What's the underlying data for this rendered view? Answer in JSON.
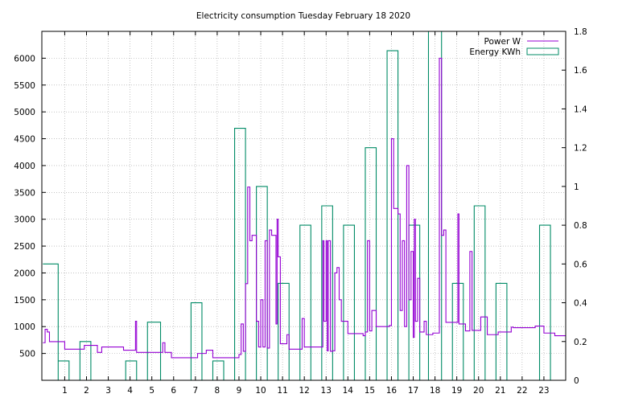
{
  "chart_data": {
    "type": "line",
    "title": "Electricity consumption Tuesday February 18 2020",
    "grid": true,
    "legend_position": "top-right",
    "x_axis": {
      "range": [
        -0.05,
        24
      ],
      "ticks": [
        1,
        2,
        3,
        4,
        5,
        6,
        7,
        8,
        9,
        10,
        11,
        12,
        13,
        14,
        15,
        16,
        17,
        18,
        19,
        20,
        21,
        22,
        23
      ]
    },
    "y_axis_left": {
      "range": [
        0,
        6500
      ],
      "ticks": [
        500,
        1000,
        1500,
        2000,
        2500,
        3000,
        3500,
        4000,
        4500,
        5000,
        5500,
        6000
      ]
    },
    "y_axis_right": {
      "range": [
        0,
        1.8
      ],
      "ticks": [
        0,
        0.2,
        0.4,
        0.6,
        0.8,
        1,
        1.2,
        1.4,
        1.6,
        1.8
      ]
    },
    "series": [
      {
        "name": "Power W",
        "axis": "left",
        "color": "#9400d3",
        "step": true,
        "points": [
          [
            0,
            700
          ],
          [
            0.1,
            950
          ],
          [
            0.2,
            900
          ],
          [
            0.3,
            720
          ],
          [
            1,
            580
          ],
          [
            1.8,
            580
          ],
          [
            1.9,
            650
          ],
          [
            2.4,
            650
          ],
          [
            2.5,
            520
          ],
          [
            2.7,
            620
          ],
          [
            3.6,
            620
          ],
          [
            3.7,
            560
          ],
          [
            4.2,
            560
          ],
          [
            4.25,
            1100
          ],
          [
            4.3,
            520
          ],
          [
            5.4,
            520
          ],
          [
            5.5,
            700
          ],
          [
            5.6,
            520
          ],
          [
            5.9,
            420
          ],
          [
            7.1,
            500
          ],
          [
            7.5,
            560
          ],
          [
            7.8,
            420
          ],
          [
            9.0,
            480
          ],
          [
            9.1,
            1050
          ],
          [
            9.2,
            540
          ],
          [
            9.3,
            1800
          ],
          [
            9.4,
            3600
          ],
          [
            9.5,
            2600
          ],
          [
            9.6,
            2700
          ],
          [
            9.8,
            1100
          ],
          [
            9.9,
            620
          ],
          [
            10.0,
            1500
          ],
          [
            10.1,
            620
          ],
          [
            10.2,
            2600
          ],
          [
            10.3,
            600
          ],
          [
            10.4,
            2800
          ],
          [
            10.5,
            2700
          ],
          [
            10.6,
            2700
          ],
          [
            10.7,
            1050
          ],
          [
            10.75,
            3000
          ],
          [
            10.8,
            2300
          ],
          [
            10.9,
            680
          ],
          [
            11.2,
            850
          ],
          [
            11.3,
            580
          ],
          [
            11.8,
            580
          ],
          [
            11.9,
            1150
          ],
          [
            12.0,
            620
          ],
          [
            12.8,
            620
          ],
          [
            12.85,
            2600
          ],
          [
            12.9,
            1100
          ],
          [
            13.0,
            2600
          ],
          [
            13.05,
            550
          ],
          [
            13.1,
            2600
          ],
          [
            13.2,
            540
          ],
          [
            13.3,
            550
          ],
          [
            13.4,
            2000
          ],
          [
            13.5,
            2100
          ],
          [
            13.6,
            1500
          ],
          [
            13.7,
            1100
          ],
          [
            14.0,
            870
          ],
          [
            14.7,
            830
          ],
          [
            14.8,
            900
          ],
          [
            14.9,
            2600
          ],
          [
            15.0,
            920
          ],
          [
            15.1,
            1300
          ],
          [
            15.3,
            1000
          ],
          [
            15.9,
            1020
          ],
          [
            16.0,
            4500
          ],
          [
            16.1,
            3200
          ],
          [
            16.3,
            3100
          ],
          [
            16.4,
            1300
          ],
          [
            16.5,
            2600
          ],
          [
            16.6,
            1000
          ],
          [
            16.7,
            4000
          ],
          [
            16.8,
            1500
          ],
          [
            16.9,
            2400
          ],
          [
            17.0,
            800
          ],
          [
            17.05,
            3000
          ],
          [
            17.1,
            1100
          ],
          [
            17.2,
            1900
          ],
          [
            17.3,
            900
          ],
          [
            17.5,
            1100
          ],
          [
            17.6,
            850
          ],
          [
            17.9,
            880
          ],
          [
            18.2,
            6000
          ],
          [
            18.3,
            2700
          ],
          [
            18.4,
            2800
          ],
          [
            18.5,
            1080
          ],
          [
            19.0,
            1080
          ],
          [
            19.05,
            3100
          ],
          [
            19.1,
            1050
          ],
          [
            19.4,
            920
          ],
          [
            19.6,
            2400
          ],
          [
            19.7,
            930
          ],
          [
            20.1,
            1180
          ],
          [
            20.4,
            850
          ],
          [
            20.9,
            900
          ],
          [
            21.5,
            990
          ],
          [
            21.6,
            980
          ],
          [
            22.6,
            1010
          ],
          [
            23.0,
            880
          ],
          [
            23.5,
            830
          ],
          [
            24.0,
            830
          ]
        ]
      },
      {
        "name": "Energy KWh",
        "axis": "right",
        "color": "#008b66",
        "step": true,
        "points": [
          [
            0,
            0.6
          ],
          [
            0.7,
            0
          ],
          [
            0.7,
            0.1
          ],
          [
            1.2,
            0.1
          ],
          [
            1.2,
            0
          ],
          [
            1.7,
            0
          ],
          [
            1.7,
            0.2
          ],
          [
            2.2,
            0.2
          ],
          [
            2.2,
            0
          ],
          [
            3.8,
            0
          ],
          [
            3.8,
            0.1
          ],
          [
            4.3,
            0.1
          ],
          [
            4.3,
            0
          ],
          [
            4.8,
            0
          ],
          [
            4.8,
            0.3
          ],
          [
            5.4,
            0.3
          ],
          [
            5.4,
            0
          ],
          [
            6.8,
            0
          ],
          [
            6.8,
            0.4
          ],
          [
            7.3,
            0.4
          ],
          [
            7.3,
            0
          ],
          [
            7.8,
            0
          ],
          [
            7.8,
            0.1
          ],
          [
            8.3,
            0.1
          ],
          [
            8.3,
            0
          ],
          [
            8.8,
            0
          ],
          [
            8.8,
            1.3
          ],
          [
            9.3,
            1.3
          ],
          [
            9.3,
            0
          ],
          [
            9.8,
            0
          ],
          [
            9.8,
            1.0
          ],
          [
            10.3,
            1.0
          ],
          [
            10.3,
            0
          ],
          [
            10.8,
            0
          ],
          [
            10.8,
            0.5
          ],
          [
            11.3,
            0.5
          ],
          [
            11.3,
            0
          ],
          [
            11.8,
            0
          ],
          [
            11.8,
            0.8
          ],
          [
            12.3,
            0.8
          ],
          [
            12.3,
            0
          ],
          [
            12.8,
            0
          ],
          [
            12.8,
            0.9
          ],
          [
            13.3,
            0.9
          ],
          [
            13.3,
            0
          ],
          [
            13.8,
            0
          ],
          [
            13.8,
            0.8
          ],
          [
            14.3,
            0.8
          ],
          [
            14.3,
            0
          ],
          [
            14.8,
            0
          ],
          [
            14.8,
            1.2
          ],
          [
            15.3,
            1.2
          ],
          [
            15.3,
            0
          ],
          [
            15.8,
            0
          ],
          [
            15.8,
            1.7
          ],
          [
            16.3,
            1.7
          ],
          [
            16.3,
            0
          ],
          [
            16.8,
            0
          ],
          [
            16.8,
            0.8
          ],
          [
            17.3,
            0.8
          ],
          [
            17.3,
            0
          ],
          [
            17.7,
            0
          ],
          [
            17.7,
            1.8
          ],
          [
            18.3,
            1.8
          ],
          [
            18.3,
            0
          ],
          [
            18.8,
            0
          ],
          [
            18.8,
            0.5
          ],
          [
            19.3,
            0.5
          ],
          [
            19.3,
            0
          ],
          [
            19.8,
            0
          ],
          [
            19.8,
            0.9
          ],
          [
            20.3,
            0.9
          ],
          [
            20.3,
            0
          ],
          [
            20.8,
            0
          ],
          [
            20.8,
            0.5
          ],
          [
            21.3,
            0.5
          ],
          [
            21.3,
            0
          ],
          [
            22.8,
            0
          ],
          [
            22.8,
            0.8
          ],
          [
            23.3,
            0.8
          ],
          [
            23.3,
            0
          ]
        ]
      }
    ]
  }
}
